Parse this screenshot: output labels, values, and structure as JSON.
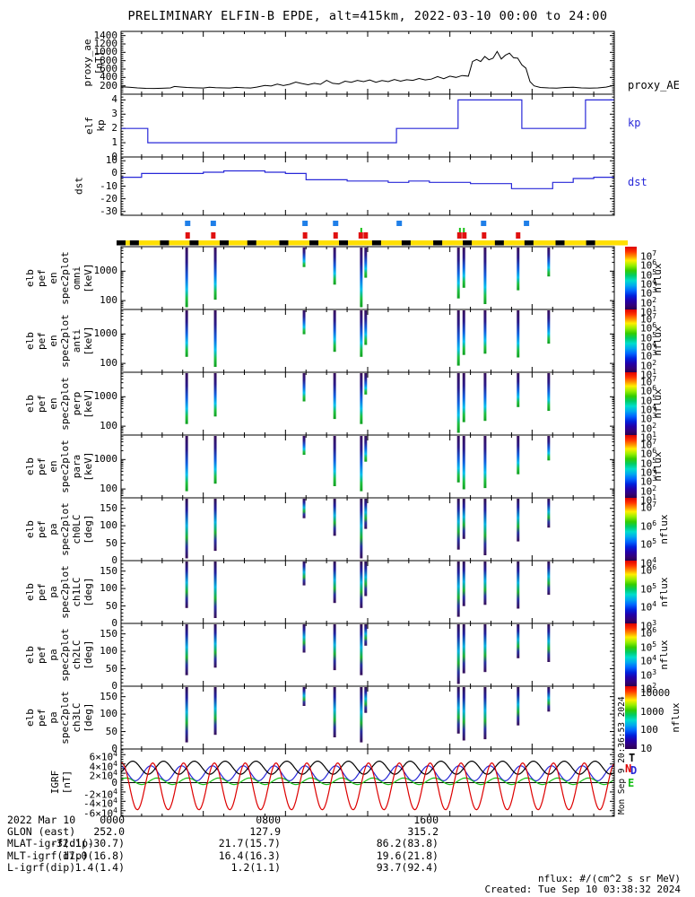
{
  "title": "PRELIMINARY ELFIN-B EPDE, alt=415km, 2022-03-10 00:00 to 24:00",
  "colors": {
    "blue": "#2828d8",
    "marker_blue": "#1f7fe8",
    "marker_red": "#e01010",
    "marker_green": "#18c018",
    "bar_yellow": "#ffdf00",
    "black": "#000000"
  },
  "top_panels": {
    "proxy_ae": {
      "left_label_lines": [
        "proxy_ae",
        "[nT]"
      ],
      "right_label": "proxy_AE",
      "yticks": [
        {
          "label": "1400",
          "value": 1400
        },
        {
          "label": "1200",
          "value": 1200
        },
        {
          "label": "1000",
          "value": 1000
        },
        {
          "label": "800",
          "value": 800
        },
        {
          "label": "600",
          "value": 600
        },
        {
          "label": "400",
          "value": 400
        },
        {
          "label": "200",
          "value": 200
        }
      ]
    },
    "kp": {
      "left_label_lines": [
        "elf",
        "kp"
      ],
      "right_label": "kp",
      "yticks": [
        {
          "label": "4",
          "value": 4
        },
        {
          "label": "3",
          "value": 3
        },
        {
          "label": "2",
          "value": 2
        },
        {
          "label": "1",
          "value": 1
        },
        {
          "label": "0",
          "value": 0
        }
      ]
    },
    "dst": {
      "left_label_lines": [
        "dst"
      ],
      "right_label": "dst",
      "yticks": [
        {
          "label": "10",
          "value": 10
        },
        {
          "label": "0",
          "value": 0
        },
        {
          "label": "-10",
          "value": -10
        },
        {
          "label": "-20",
          "value": -20
        },
        {
          "label": "-30",
          "value": -30
        }
      ]
    }
  },
  "spectro_panels": [
    {
      "type": "energy",
      "label_lines": [
        "elb",
        "pef",
        "en",
        "spec2plot",
        "omni",
        "[keV]"
      ],
      "yticks": [
        {
          "label": "1000",
          "value": 1000
        },
        {
          "label": "100",
          "value": 100
        }
      ]
    },
    {
      "type": "energy",
      "label_lines": [
        "elb",
        "pef",
        "en",
        "spec2plot",
        "anti",
        "[keV]"
      ],
      "yticks": [
        {
          "label": "1000",
          "value": 1000
        },
        {
          "label": "100",
          "value": 100
        }
      ]
    },
    {
      "type": "energy",
      "label_lines": [
        "elb",
        "pef",
        "en",
        "spec2plot",
        "perp",
        "[keV]"
      ],
      "yticks": [
        {
          "label": "1000",
          "value": 1000
        },
        {
          "label": "100",
          "value": 100
        }
      ]
    },
    {
      "type": "energy",
      "label_lines": [
        "elb",
        "pef",
        "en",
        "spec2plot",
        "para",
        "[keV]"
      ],
      "yticks": [
        {
          "label": "1000",
          "value": 1000
        },
        {
          "label": "100",
          "value": 100
        }
      ]
    },
    {
      "type": "pa",
      "label_lines": [
        "elb",
        "pef",
        "pa",
        "spec2plot",
        "ch0LC",
        "[deg]"
      ],
      "yticks": [
        {
          "label": "150",
          "value": 150
        },
        {
          "label": "100",
          "value": 100
        },
        {
          "label": "50",
          "value": 50
        },
        {
          "label": "0",
          "value": 0
        }
      ]
    },
    {
      "type": "pa",
      "label_lines": [
        "elb",
        "pef",
        "pa",
        "spec2plot",
        "ch1LC",
        "[deg]"
      ],
      "yticks": [
        {
          "label": "150",
          "value": 150
        },
        {
          "label": "100",
          "value": 100
        },
        {
          "label": "50",
          "value": 50
        },
        {
          "label": "0",
          "value": 0
        }
      ]
    },
    {
      "type": "pa",
      "label_lines": [
        "elb",
        "pef",
        "pa",
        "spec2plot",
        "ch2LC",
        "[deg]"
      ],
      "yticks": [
        {
          "label": "150",
          "value": 150
        },
        {
          "label": "100",
          "value": 100
        },
        {
          "label": "50",
          "value": 50
        },
        {
          "label": "0",
          "value": 0
        }
      ]
    },
    {
      "type": "pa",
      "label_lines": [
        "elb",
        "pef",
        "pa",
        "spec2plot",
        "ch3LC",
        "[deg]"
      ],
      "yticks": [
        {
          "label": "150",
          "value": 150
        },
        {
          "label": "100",
          "value": 100
        },
        {
          "label": "50",
          "value": 50
        },
        {
          "label": "0",
          "value": 0
        }
      ]
    }
  ],
  "igrf": {
    "left_label_lines": [
      "IGRF",
      "[nT]"
    ],
    "yticks": [
      {
        "label": "6×10^4",
        "value": 60000
      },
      {
        "label": "4×10^4",
        "value": 40000
      },
      {
        "label": "2×10^4",
        "value": 20000
      },
      {
        "label": "0",
        "value": 0
      },
      {
        "label": "-2×10^4",
        "value": -20000
      },
      {
        "label": "-4×10^4",
        "value": -40000
      },
      {
        "label": "-6×10^4",
        "value": -60000
      }
    ],
    "legend": [
      {
        "letter": "T",
        "color": "#000000"
      },
      {
        "letter": "N",
        "color": "#dd0000"
      },
      {
        "letter": "D",
        "color": "#2828d8"
      },
      {
        "letter": "E",
        "color": "#18c018"
      }
    ]
  },
  "markers": {
    "blue_fracs": [
      0.135,
      0.187,
      0.373,
      0.435,
      0.564,
      0.735,
      0.822
    ],
    "green_fracs": [
      0.487,
      0.687,
      0.695
    ],
    "red_fracs": [
      0.135,
      0.187,
      0.373,
      0.435,
      0.486,
      0.496,
      0.686,
      0.696,
      0.736,
      0.805
    ]
  },
  "orbit_bar": {
    "black_seg_fracs": [
      0.0,
      0.027,
      0.088,
      0.148,
      0.209,
      0.265,
      0.33,
      0.391,
      0.451,
      0.518,
      0.578,
      0.642,
      0.702,
      0.767,
      0.827,
      0.89,
      0.952
    ]
  },
  "spectro_stripes": {
    "fracs": [
      0.133,
      0.191,
      0.371,
      0.433,
      0.487,
      0.496,
      0.684,
      0.695,
      0.738,
      0.805,
      0.867
    ],
    "lens": [
      0.95,
      0.9,
      0.45,
      0.8,
      0.95,
      0.55,
      0.95,
      0.85,
      0.9,
      0.75,
      0.6
    ]
  },
  "colorbar": {
    "unit": "nflux",
    "segments": [
      {
        "labels": [
          "10^7",
          "10^6",
          "10^5",
          "10^4",
          "10^3",
          "10^2",
          "10^1"
        ]
      },
      {
        "labels": [
          "10^7",
          "10^6",
          "10^5",
          "10^4",
          "10^3",
          "10^2",
          "10^1"
        ]
      },
      {
        "labels": [
          "10^7",
          "10^6",
          "10^5",
          "10^4",
          "10^3",
          "10^2",
          "10^1"
        ]
      },
      {
        "labels": [
          "10^7",
          "10^6",
          "10^5",
          "10^4",
          "10^3",
          "10^2",
          "10^1"
        ]
      },
      {
        "labels": [
          "10^7",
          "10^6",
          "10^5",
          "10^4"
        ]
      },
      {
        "labels": [
          "10^6",
          "10^5",
          "10^4",
          "10^3"
        ]
      },
      {
        "labels": [
          "10^6",
          "10^5",
          "10^4",
          "10^3",
          "10^2"
        ]
      },
      {
        "labels": [
          "10000",
          "1000",
          "100",
          "10"
        ]
      }
    ]
  },
  "footer": {
    "rows": [
      {
        "key": "date",
        "label": "2022 Mar 10",
        "values": [
          "0000",
          "0800",
          "1600"
        ]
      },
      {
        "key": "glon",
        "label": "GLON (east)",
        "values": [
          "252.0",
          "127.9",
          "315.2"
        ]
      },
      {
        "key": "mlat",
        "label": "MLAT-igrf(dip)",
        "values": [
          "-32.1(-30.7)",
          "21.7(15.7)",
          "86.2(83.8)"
        ]
      },
      {
        "key": "mlt",
        "label": "MLT-igrf(dip)",
        "values": [
          "17.0(16.8)",
          "16.4(16.3)",
          "19.6(21.8)"
        ]
      },
      {
        "key": "l",
        "label": "L-igrf(dip)",
        "values": [
          "1.4(1.4)",
          "1.2(1.1)",
          "93.7(92.4)"
        ]
      }
    ]
  },
  "credits": {
    "units_note": "nflux: #/(cm^2 s sr MeV)",
    "created": "Created: Tue Sep 10 03:38:32 2024",
    "side_stamp": "Mon Sep 9 20:36:53 2024"
  },
  "chart_data": [
    {
      "id": "proxy_ae",
      "type": "line",
      "title": "proxy_AE",
      "ylabel": "proxy_ae [nT]",
      "ylim": [
        0,
        1500
      ],
      "color": "#000000",
      "x_hours": [
        0,
        0.4,
        0.8,
        1.2,
        1.6,
        2,
        2.4,
        2.6,
        2.9,
        3.2,
        3.6,
        4,
        4.3,
        4.6,
        5,
        5.3,
        5.6,
        6,
        6.3,
        6.6,
        7,
        7.3,
        7.6,
        7.9,
        8.2,
        8.5,
        8.8,
        9.1,
        9.4,
        9.7,
        10,
        10.3,
        10.6,
        10.9,
        11.2,
        11.5,
        11.8,
        12.1,
        12.4,
        12.7,
        13,
        13.3,
        13.6,
        13.9,
        14.2,
        14.5,
        14.8,
        15.1,
        15.4,
        15.7,
        16,
        16.3,
        16.6,
        16.9,
        17.1,
        17.3,
        17.5,
        17.7,
        17.9,
        18.1,
        18.3,
        18.5,
        18.7,
        18.9,
        19.1,
        19.3,
        19.5,
        19.7,
        19.9,
        20.1,
        20.4,
        20.8,
        21.2,
        21.6,
        22,
        22.4,
        22.8,
        23.2,
        23.6,
        24
      ],
      "values": [
        175,
        165,
        150,
        140,
        138,
        142,
        150,
        185,
        172,
        160,
        152,
        148,
        165,
        155,
        150,
        148,
        162,
        152,
        148,
        170,
        210,
        195,
        240,
        205,
        235,
        290,
        255,
        225,
        260,
        235,
        330,
        260,
        245,
        310,
        285,
        330,
        300,
        340,
        285,
        325,
        300,
        350,
        310,
        345,
        330,
        375,
        340,
        360,
        420,
        370,
        430,
        400,
        445,
        430,
        780,
        830,
        780,
        900,
        820,
        860,
        1020,
        840,
        930,
        980,
        870,
        860,
        700,
        620,
        300,
        200,
        160,
        150,
        145,
        160,
        165,
        150,
        145,
        150,
        170,
        215
      ]
    },
    {
      "id": "kp",
      "type": "line",
      "title": "kp",
      "ylim": [
        0,
        4.4
      ],
      "color": "#2828d8",
      "steps": [
        [
          0,
          2
        ],
        [
          1.3,
          1
        ],
        [
          13.4,
          2
        ],
        [
          16.4,
          4
        ],
        [
          19.5,
          2
        ],
        [
          22.6,
          4
        ],
        [
          24,
          4
        ]
      ]
    },
    {
      "id": "dst",
      "type": "line",
      "title": "dst",
      "ylim": [
        -33,
        13
      ],
      "color": "#2828d8",
      "hourly_values": [
        -3,
        0,
        0,
        0,
        1,
        2,
        2,
        1,
        0,
        -5,
        -5,
        -6,
        -6,
        -7,
        -6,
        -7,
        -7,
        -8,
        -8,
        -12,
        -12,
        -7,
        -4,
        -3
      ]
    },
    {
      "id": "energy_spectra",
      "type": "heatmap",
      "title": "elb pef en spec2plot omni/anti/perp/para [keV]",
      "ylog_range_keV": [
        50,
        6800
      ],
      "colorbar_range": [
        "10^1",
        "10^7"
      ],
      "event_time_fracs": [
        0.133,
        0.191,
        0.371,
        0.433,
        0.487,
        0.496,
        0.684,
        0.695,
        0.738,
        0.805,
        0.867
      ]
    },
    {
      "id": "pa_spectra",
      "type": "heatmap",
      "title": "elb pef pa spec2plot ch0LC/ch1LC/ch2LC/ch3LC [deg]",
      "y_range_deg": [
        0,
        180
      ],
      "event_time_fracs": [
        0.133,
        0.191,
        0.371,
        0.433,
        0.487,
        0.496,
        0.684,
        0.695,
        0.738,
        0.805,
        0.867
      ]
    },
    {
      "id": "igrf",
      "type": "line",
      "title": "IGRF [nT]",
      "ylim": [
        -72000,
        72000
      ],
      "period_hours": 1.5,
      "series": [
        {
          "name": "D",
          "color": "#2828d8",
          "mean": 20000,
          "amp": 16000,
          "phase": 1.8
        },
        {
          "name": "E",
          "color": "#18c018",
          "mean": 3000,
          "amp": 7000,
          "phase": 0.5
        },
        {
          "name": "T",
          "color": "#000000",
          "mean": 32000,
          "amp": 14000,
          "phase": -0.8
        },
        {
          "name": "N",
          "color": "#dd0000",
          "mean": -8000,
          "amp": 50000,
          "phase": 1.4
        }
      ]
    }
  ]
}
